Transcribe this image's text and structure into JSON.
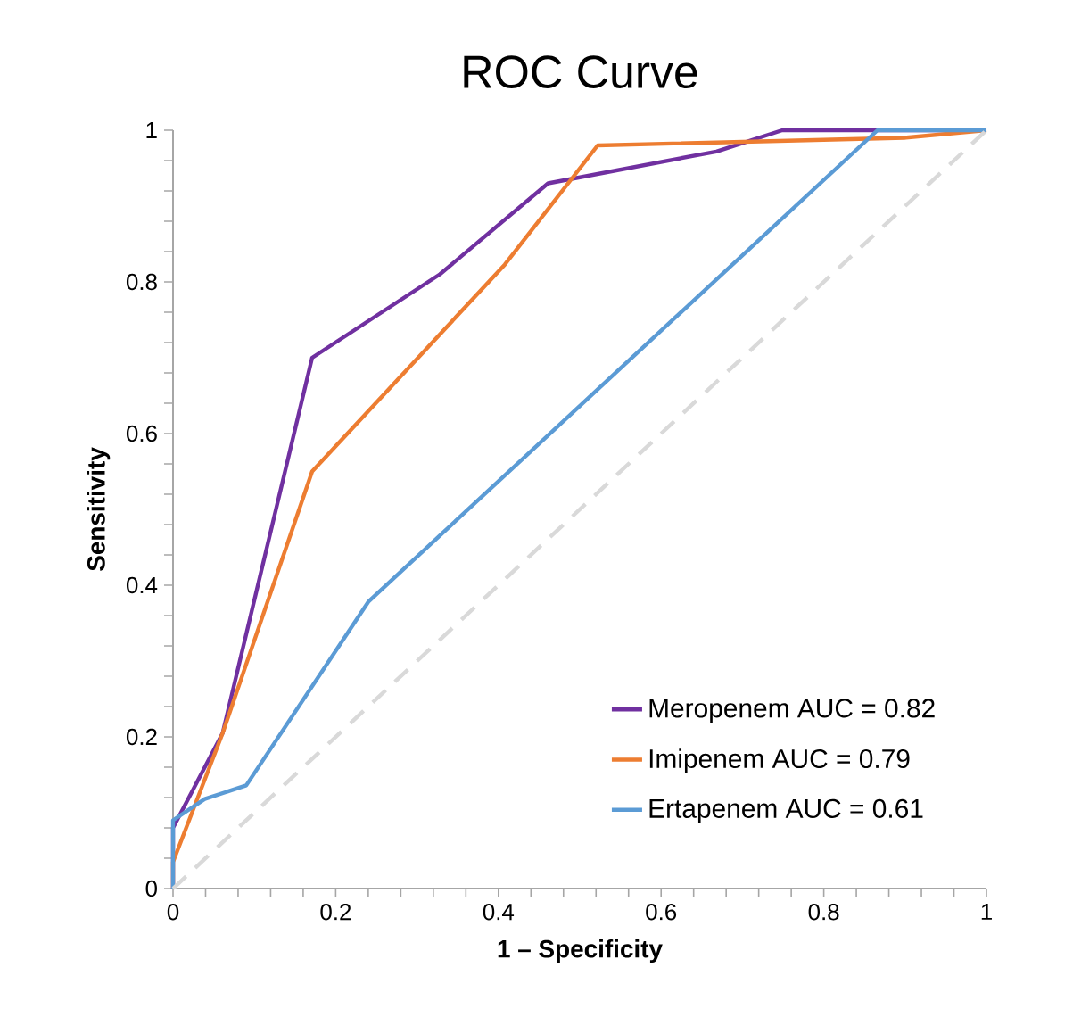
{
  "chart_data": {
    "type": "line",
    "title": "ROC Curve",
    "xlabel": "1 – Specificity",
    "ylabel": "Sensitivity",
    "xlim": [
      0,
      1
    ],
    "ylim": [
      0,
      1
    ],
    "xticks": [
      0,
      0.2,
      0.4,
      0.6,
      0.8,
      1
    ],
    "yticks": [
      0,
      0.2,
      0.4,
      0.6,
      0.8,
      1
    ],
    "legend": "bottom right",
    "series": [
      {
        "name": "Meropenem AUC = 0.82",
        "color": "#7030a0",
        "x": [
          0,
          0,
          0.061,
          0.171,
          0.328,
          0.461,
          0.668,
          0.749,
          0.866,
          1
        ],
        "values": [
          0,
          0.08,
          0.205,
          0.7,
          0.81,
          0.93,
          0.972,
          1,
          1,
          1
        ]
      },
      {
        "name": "Imipenem AUC = 0.79",
        "color": "#ed7d31",
        "x": [
          0,
          0,
          0.061,
          0.171,
          0.408,
          0.522,
          0.899,
          1
        ],
        "values": [
          0,
          0.035,
          0.205,
          0.55,
          0.823,
          0.98,
          0.99,
          1
        ]
      },
      {
        "name": "Ertapenem AUC = 0.61",
        "color": "#5b9bd5",
        "x": [
          0,
          0,
          0.039,
          0.09,
          0.24,
          0.866,
          1
        ],
        "values": [
          0,
          0.09,
          0.118,
          0.136,
          0.378,
          1,
          1
        ]
      },
      {
        "color": "#d9d9d9",
        "line_style": "dashed",
        "x": [
          0,
          1
        ],
        "values": [
          0,
          1
        ]
      }
    ]
  }
}
